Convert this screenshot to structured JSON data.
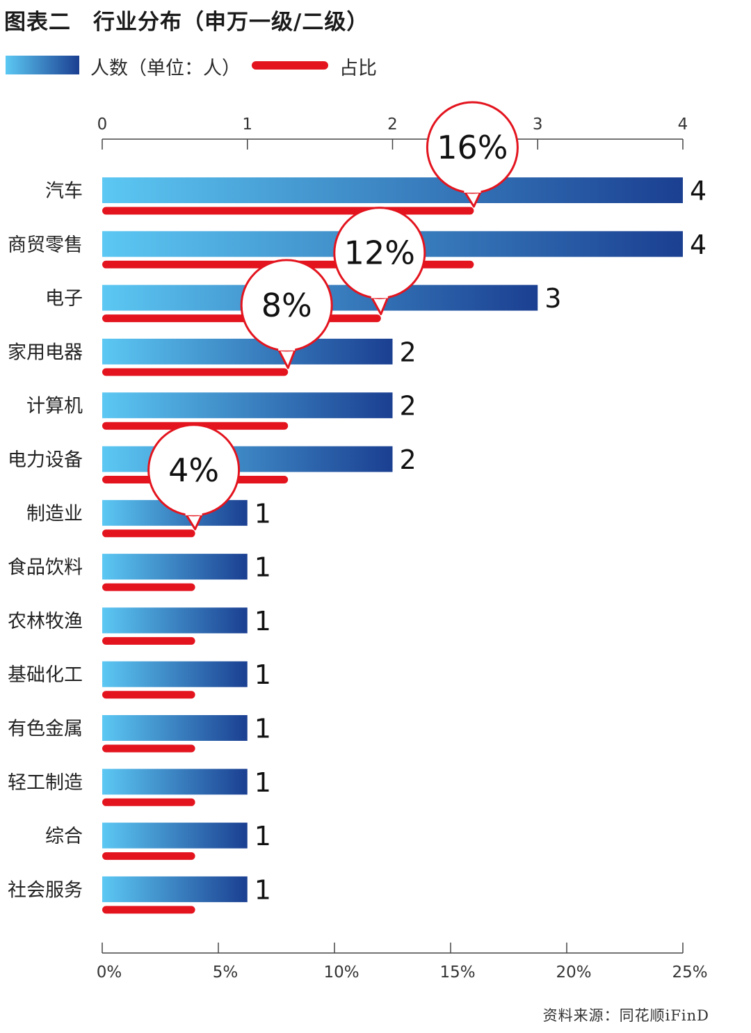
{
  "title": "图表二　行业分布（申万一级/二级）",
  "legend": {
    "bar_label": "人数（单位：人）",
    "line_label": "占比"
  },
  "source": "资料来源：同花顺iFinD",
  "colors": {
    "bar_start": "#5cc8f3",
    "bar_end": "#1b3f91",
    "line": "#e3141e"
  },
  "chart_data": {
    "type": "bar",
    "orientation": "horizontal",
    "categories": [
      "汽车",
      "商贸零售",
      "电子",
      "家用电器",
      "计算机",
      "电力设备",
      "制造业",
      "食品饮料",
      "农林牧渔",
      "基础化工",
      "有色金属",
      "轻工制造",
      "综合",
      "社会服务"
    ],
    "series": [
      {
        "name": "人数（单位：人）",
        "axis": "top",
        "values": [
          4,
          4,
          3,
          2,
          2,
          2,
          1,
          1,
          1,
          1,
          1,
          1,
          1,
          1
        ],
        "data_labels": [
          "4",
          "4",
          "3",
          "2",
          "2",
          "2",
          "1",
          "1",
          "1",
          "1",
          "1",
          "1",
          "1",
          "1"
        ]
      },
      {
        "name": "占比",
        "axis": "bottom",
        "values": [
          16,
          16,
          12,
          8,
          8,
          8,
          4,
          4,
          4,
          4,
          4,
          4,
          4,
          4
        ]
      }
    ],
    "top_axis": {
      "range": [
        0,
        4
      ],
      "ticks": [
        "0",
        "1",
        "2",
        "3",
        "4"
      ]
    },
    "bottom_axis": {
      "range": [
        0,
        25
      ],
      "ticks": [
        "0%",
        "5%",
        "10%",
        "15%",
        "20%",
        "25%"
      ]
    },
    "callouts": [
      {
        "category": "汽车",
        "label": "16%"
      },
      {
        "category": "电子",
        "label": "12%"
      },
      {
        "category": "家用电器",
        "label": "8%"
      },
      {
        "category": "制造业",
        "label": "4%"
      }
    ],
    "grid": false,
    "legend_position": "top-left"
  }
}
